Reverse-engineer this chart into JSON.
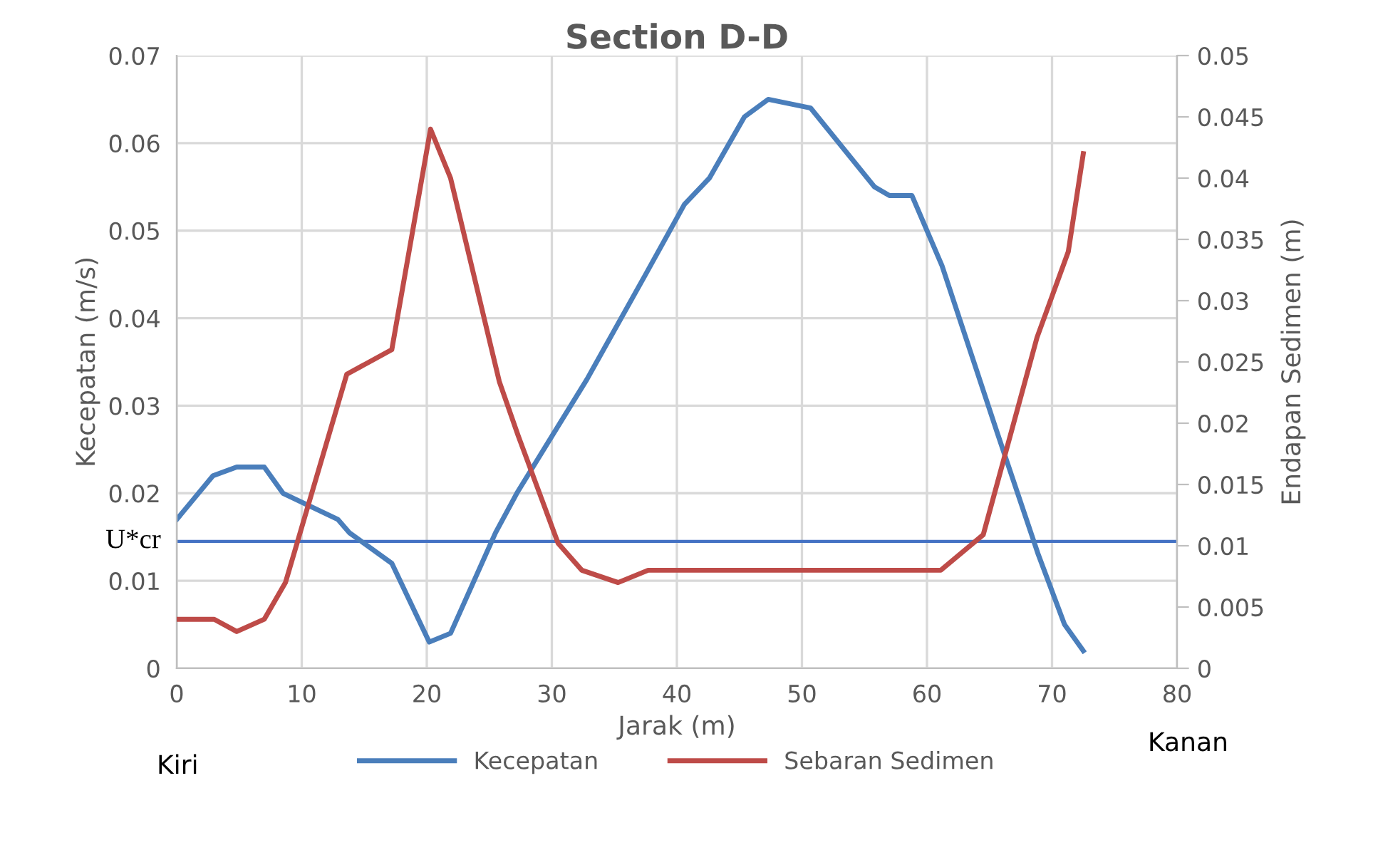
{
  "chart_data": {
    "type": "line",
    "title": "Section D-D",
    "xlabel": "Jarak (m)",
    "ylabel": "Kecepatan (m/s)",
    "y2label": "Endapan Sedimen (m)",
    "xlim": [
      0,
      80
    ],
    "xticks": [
      0,
      10,
      20,
      30,
      40,
      50,
      60,
      70,
      80
    ],
    "ylim": [
      0,
      0.07
    ],
    "yticks": [
      0,
      0.01,
      0.02,
      0.03,
      0.04,
      0.05,
      0.06,
      0.07
    ],
    "y2lim": [
      0,
      0.05
    ],
    "y2ticks": [
      0,
      0.005,
      0.01,
      0.015,
      0.02,
      0.025,
      0.03,
      0.035,
      0.04,
      0.045,
      0.05
    ],
    "grid": true,
    "legend": "bottom",
    "series": [
      {
        "name": "Kecepatan",
        "color": "#4a7ebb",
        "x": [
          0,
          2.9,
          4.8,
          7,
          8.5,
          12.9,
          13.8,
          17.2,
          20.2,
          21.9,
          25.5,
          27.2,
          32.8,
          37.5,
          40.6,
          42.6,
          45.4,
          47.3,
          50.7,
          55.8,
          57,
          58.8,
          61.2,
          65.6,
          68.9,
          71,
          72.5
        ],
        "values": [
          0.017,
          0.022,
          0.023,
          0.023,
          0.02,
          0.017,
          0.0155,
          0.012,
          0.003,
          0.004,
          0.0155,
          0.02,
          0.033,
          0.045,
          0.053,
          0.056,
          0.063,
          0.065,
          0.064,
          0.055,
          0.054,
          0.054,
          0.046,
          0.027,
          0.013,
          0.005,
          0.002
        ]
      },
      {
        "name": "Sebaran Sedimen",
        "color": "#be4b48",
        "axis": "y2",
        "x": [
          0,
          3,
          4.8,
          7,
          8.7,
          13.6,
          17.2,
          20.3,
          21.9,
          25.8,
          27.3,
          30.5,
          32.4,
          35.3,
          37.7,
          61.1,
          64.5,
          68.8,
          71.3,
          72.5
        ],
        "values": [
          0.004,
          0.004,
          0.003,
          0.004,
          0.007,
          0.024,
          0.026,
          0.044,
          0.04,
          0.0234,
          0.019,
          0.0102,
          0.008,
          0.007,
          0.008,
          0.008,
          0.0109,
          0.027,
          0.034,
          0.042
        ]
      }
    ],
    "ref_lines": [
      {
        "axis": "y",
        "value": 0.0145,
        "label": "U*cr",
        "color": "#4472c4"
      }
    ],
    "annotations": [
      "Kiri",
      "Kanan"
    ]
  }
}
